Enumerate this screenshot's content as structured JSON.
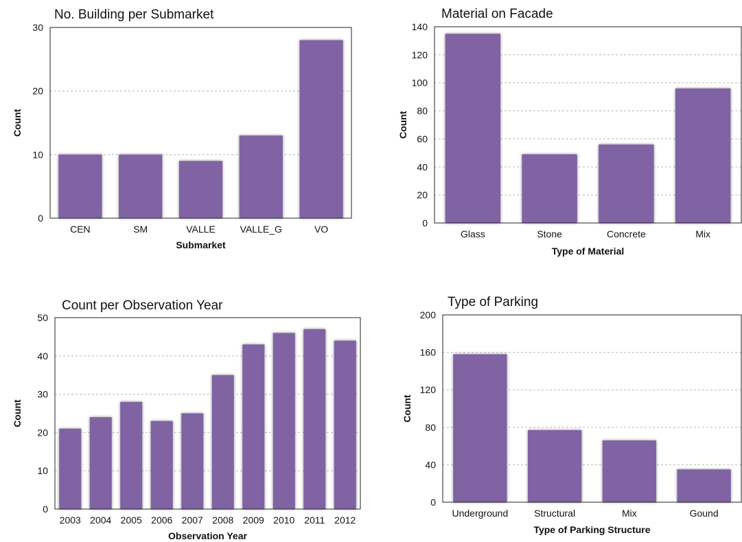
{
  "colors": {
    "bar": "#7f64a2",
    "frame": "#222222",
    "grid": "#b8b8b8"
  },
  "chart_data": [
    {
      "type": "bar",
      "title": "No. Building per Submarket",
      "xlabel": "Submarket",
      "ylabel": "Count",
      "categories": [
        "CEN",
        "SM",
        "VALLE",
        "VALLE_G",
        "VO"
      ],
      "values": [
        10,
        10,
        9,
        13,
        28
      ],
      "ylim": [
        0,
        30
      ],
      "yticks": [
        0,
        10,
        20,
        30
      ],
      "grid": true
    },
    {
      "type": "bar",
      "title": "Material on Facade",
      "xlabel": "Type of Material",
      "ylabel": "Count",
      "categories": [
        "Glass",
        "Stone",
        "Concrete",
        "Mix"
      ],
      "values": [
        135,
        49,
        56,
        96
      ],
      "ylim": [
        0,
        140
      ],
      "yticks": [
        0,
        20,
        40,
        60,
        80,
        100,
        120,
        140
      ],
      "grid": true
    },
    {
      "type": "bar",
      "title": "Count per Observation Year",
      "xlabel": "Observation Year",
      "ylabel": "Count",
      "categories": [
        "2003",
        "2004",
        "2005",
        "2006",
        "2007",
        "2008",
        "2009",
        "2010",
        "2011",
        "2012"
      ],
      "values": [
        21,
        24,
        28,
        23,
        25,
        35,
        43,
        46,
        47,
        44
      ],
      "ylim": [
        0,
        50
      ],
      "yticks": [
        0,
        10,
        20,
        30,
        40,
        50
      ],
      "grid": true
    },
    {
      "type": "bar",
      "title": "Type of Parking",
      "xlabel": "Type of Parking Structure",
      "ylabel": "Count",
      "categories": [
        "Underground",
        "Structural",
        "Mix",
        "Gound"
      ],
      "values": [
        158,
        77,
        66,
        35
      ],
      "ylim": [
        0,
        200
      ],
      "yticks": [
        0,
        40,
        80,
        120,
        160,
        200
      ],
      "grid": true
    }
  ]
}
